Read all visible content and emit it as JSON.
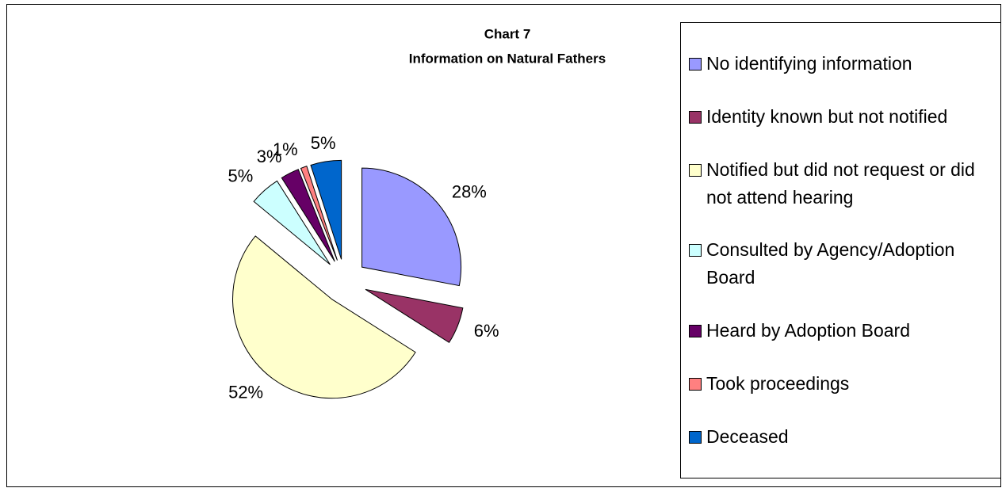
{
  "chart_data": {
    "type": "pie",
    "title": "Chart 7",
    "subtitle": "Information on Natural Fathers",
    "categories": [
      "No identifying information",
      "Identity known but not notified",
      "Notified but did not request or did not attend hearing",
      "Consulted by Agency/Adoption Board",
      "Heard by Adoption Board",
      "Took proceedings",
      "Deceased"
    ],
    "values": [
      28,
      6,
      52,
      5,
      3,
      1,
      5
    ],
    "value_labels": [
      "28%",
      "6%",
      "52%",
      "5%",
      "3%",
      "1%",
      "5%"
    ],
    "colors": [
      "#9999ff",
      "#993366",
      "#ffffcc",
      "#ccffff",
      "#660066",
      "#ff8080",
      "#0066cc"
    ],
    "legend": "right"
  }
}
